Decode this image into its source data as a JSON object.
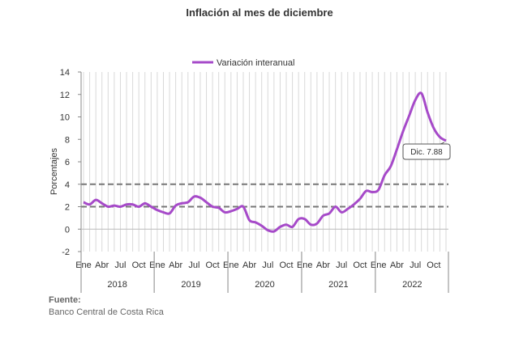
{
  "chart_data": {
    "type": "line",
    "title": "Inflación al mes de diciembre",
    "ylabel": "Porcentajes",
    "ylim": [
      -2,
      14
    ],
    "yticks": [
      -2,
      0,
      2,
      4,
      6,
      8,
      10,
      12,
      14
    ],
    "grid": "vertical",
    "legend_position": "top-center",
    "month_tick_labels": [
      "Ene",
      "Abr",
      "Jul",
      "Oct"
    ],
    "years": [
      "2018",
      "2019",
      "2020",
      "2021",
      "2022"
    ],
    "reference_lines": [
      2,
      4
    ],
    "annotation": "Dic. 7.88",
    "series": [
      {
        "name": "Variación interanual",
        "color": "#a64ac9",
        "x": [
          "2018-01",
          "2018-02",
          "2018-03",
          "2018-04",
          "2018-05",
          "2018-06",
          "2018-07",
          "2018-08",
          "2018-09",
          "2018-10",
          "2018-11",
          "2018-12",
          "2019-01",
          "2019-02",
          "2019-03",
          "2019-04",
          "2019-05",
          "2019-06",
          "2019-07",
          "2019-08",
          "2019-09",
          "2019-10",
          "2019-11",
          "2019-12",
          "2020-01",
          "2020-02",
          "2020-03",
          "2020-04",
          "2020-05",
          "2020-06",
          "2020-07",
          "2020-08",
          "2020-09",
          "2020-10",
          "2020-11",
          "2020-12",
          "2021-01",
          "2021-02",
          "2021-03",
          "2021-04",
          "2021-05",
          "2021-06",
          "2021-07",
          "2021-08",
          "2021-09",
          "2021-10",
          "2021-11",
          "2021-12",
          "2022-01",
          "2022-02",
          "2022-03",
          "2022-04",
          "2022-05",
          "2022-06",
          "2022-07",
          "2022-08",
          "2022-09",
          "2022-10",
          "2022-11",
          "2022-12"
        ],
        "values": [
          2.4,
          2.2,
          2.6,
          2.3,
          2.0,
          2.1,
          2.0,
          2.2,
          2.2,
          2.0,
          2.3,
          2.0,
          1.7,
          1.5,
          1.4,
          2.1,
          2.3,
          2.4,
          2.9,
          2.8,
          2.4,
          2.0,
          1.9,
          1.5,
          1.6,
          1.8,
          2.0,
          0.8,
          0.6,
          0.3,
          -0.1,
          -0.2,
          0.2,
          0.4,
          0.2,
          0.9,
          0.9,
          0.4,
          0.5,
          1.2,
          1.4,
          2.0,
          1.5,
          1.8,
          2.2,
          2.7,
          3.4,
          3.3,
          3.5,
          4.8,
          5.6,
          7.1,
          8.7,
          10.1,
          11.5,
          12.1,
          10.4,
          9.0,
          8.2,
          7.88
        ]
      }
    ]
  },
  "source": {
    "label": "Fuente:",
    "text": "Banco Central de Costa Rica"
  }
}
